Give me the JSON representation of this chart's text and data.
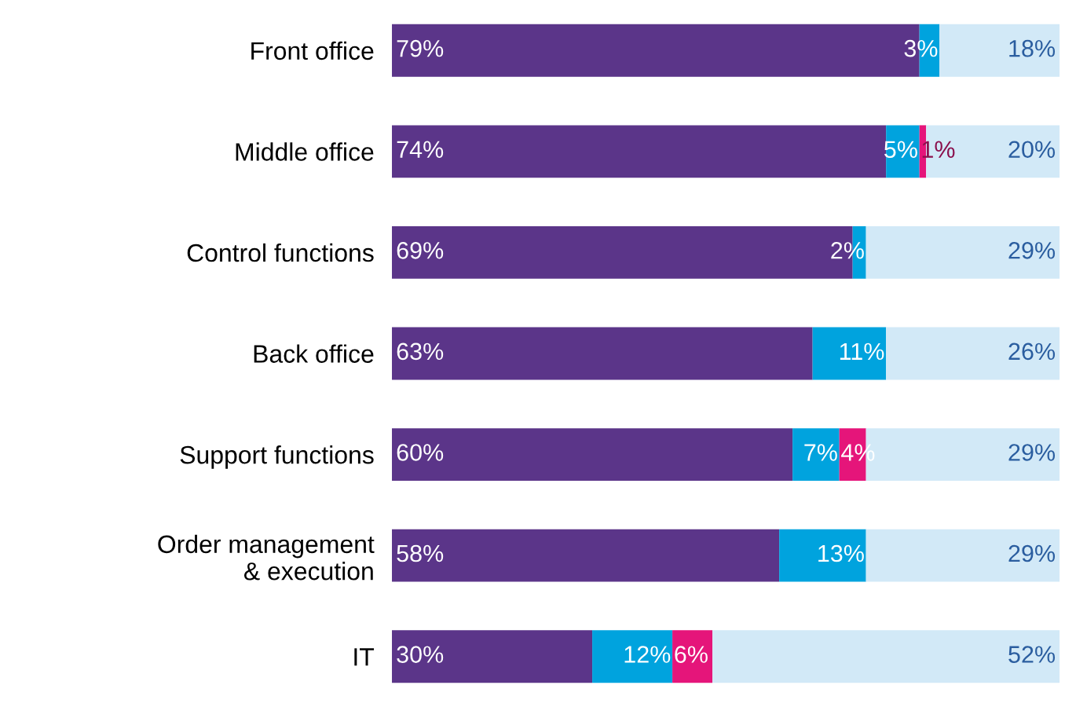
{
  "chart_data": {
    "type": "bar",
    "orientation": "horizontal",
    "stacked": true,
    "categories": [
      "Front office",
      "Middle office",
      "Control functions",
      "Back office",
      "Support functions",
      "Order management\n& execution",
      "IT"
    ],
    "series": [
      {
        "color": "#5b3589",
        "values": [
          79,
          74,
          69,
          63,
          60,
          58,
          30
        ],
        "value_labels": [
          "79%",
          "74%",
          "69%",
          "63%",
          "60%",
          "58%",
          "30%"
        ]
      },
      {
        "color": "#00a3de",
        "values": [
          3,
          5,
          2,
          11,
          7,
          13,
          12
        ],
        "value_labels": [
          "3%",
          "5%",
          "2%",
          "11%",
          "7%",
          "13%",
          "12%"
        ]
      },
      {
        "color": "#e5157a",
        "values": [
          0,
          1,
          0,
          0,
          4,
          0,
          6
        ],
        "value_labels": [
          null,
          "1%",
          null,
          null,
          "4%",
          null,
          "6%"
        ]
      },
      {
        "color": "#d2e9f7",
        "values": [
          18,
          20,
          29,
          26,
          29,
          29,
          52
        ],
        "value_labels": [
          "18%",
          "20%",
          "29%",
          "26%",
          "29%",
          "29%",
          "52%"
        ]
      }
    ],
    "xlim": [
      0,
      100
    ],
    "tick_labels": "y",
    "grid": false,
    "legend": false
  }
}
